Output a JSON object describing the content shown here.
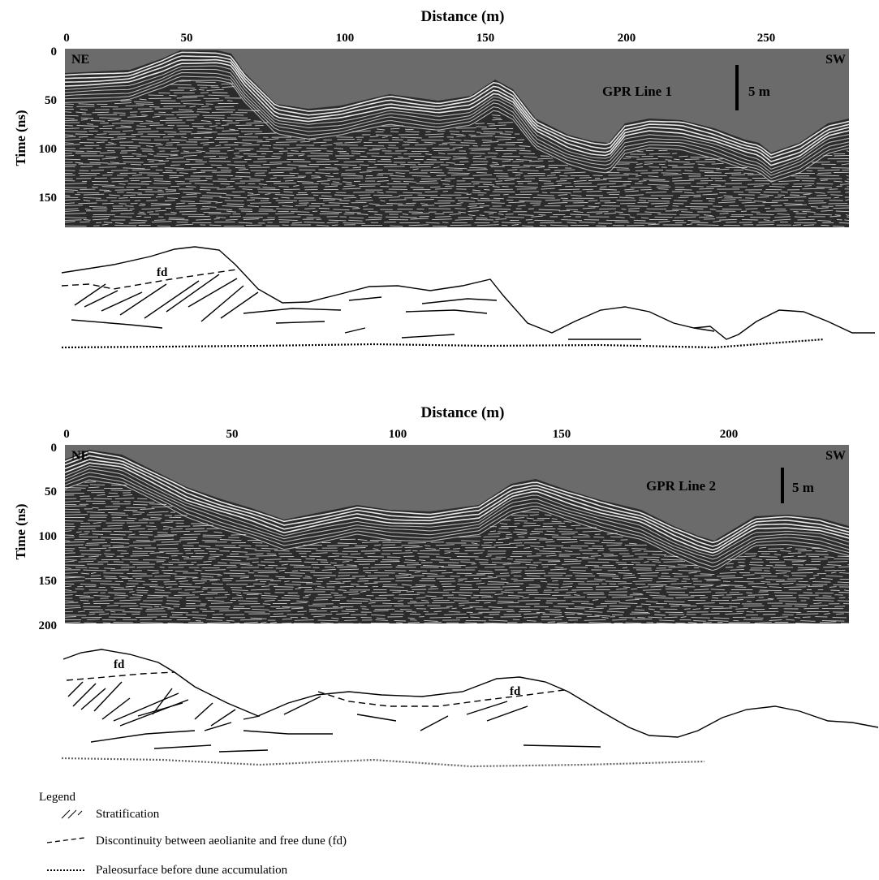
{
  "panels": [
    {
      "id": "line1",
      "x_axis_title": "Distance (m)",
      "y_axis_title": "Time (ns)",
      "x_ticks": [
        "0",
        "50",
        "100",
        "150",
        "200",
        "250"
      ],
      "y_ticks": [
        "0",
        "50",
        "100",
        "150"
      ],
      "label_left": "NE",
      "label_right": "SW",
      "line_title": "GPR Line 1",
      "scale_label": "5 m",
      "interpretation_labels": [
        "fd"
      ]
    },
    {
      "id": "line2",
      "x_axis_title": "Distance (m)",
      "y_axis_title": "Time (ns)",
      "x_ticks": [
        "0",
        "50",
        "100",
        "150",
        "200"
      ],
      "y_ticks": [
        "0",
        "50",
        "100",
        "150",
        "200"
      ],
      "label_left": "NE",
      "label_right": "SW",
      "line_title": "GPR Line 2",
      "scale_label": "5 m",
      "interpretation_labels": [
        "fd",
        "fd"
      ]
    }
  ],
  "legend": {
    "title": "Legend",
    "items": [
      {
        "symbol": "stratification",
        "label": "Stratification"
      },
      {
        "symbol": "discontinuity",
        "label": "Discontinuity between aeolianite and free dune (fd)"
      },
      {
        "symbol": "paleosurface",
        "label": "Paleosurface before dune accumulation"
      }
    ]
  },
  "colors": {
    "air": "#6b6b6b",
    "radargram_bg": "#2b2b2b",
    "reflector": "#f2f2f2",
    "ink": "#000000"
  }
}
